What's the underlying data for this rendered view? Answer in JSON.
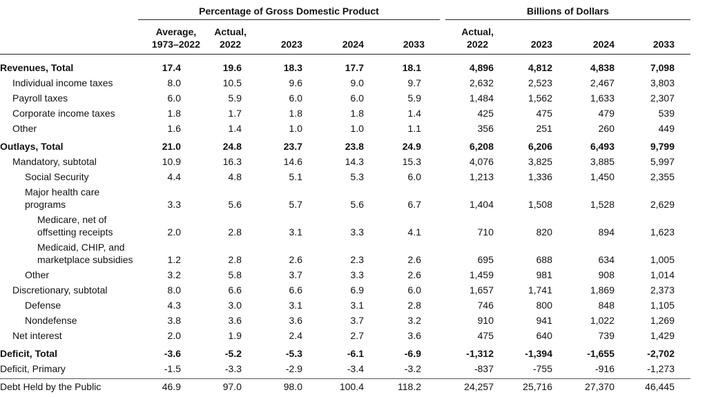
{
  "table": {
    "groups": [
      "Percentage of Gross Domestic Product",
      "Billions of Dollars"
    ],
    "columns": [
      "Average,\n1973–2022",
      "Actual,\n2022",
      "2023",
      "2024",
      "2033",
      "Actual,\n2022",
      "2023",
      "2024",
      "2033"
    ],
    "rows": [
      {
        "label": "Revenues, Total",
        "values": [
          "17.4",
          "19.6",
          "18.3",
          "17.7",
          "18.1",
          "4,896",
          "4,812",
          "4,838",
          "7,098"
        ]
      },
      {
        "label": "Individual income taxes",
        "values": [
          "8.0",
          "10.5",
          "9.6",
          "9.0",
          "9.7",
          "2,632",
          "2,523",
          "2,467",
          "3,803"
        ]
      },
      {
        "label": "Payroll taxes",
        "values": [
          "6.0",
          "5.9",
          "6.0",
          "6.0",
          "5.9",
          "1,484",
          "1,562",
          "1,633",
          "2,307"
        ]
      },
      {
        "label": "Corporate income taxes",
        "values": [
          "1.8",
          "1.7",
          "1.8",
          "1.8",
          "1.4",
          "425",
          "475",
          "479",
          "539"
        ]
      },
      {
        "label": "Other",
        "values": [
          "1.6",
          "1.4",
          "1.0",
          "1.0",
          "1.1",
          "356",
          "251",
          "260",
          "449"
        ]
      },
      {
        "label": "Outlays, Total",
        "values": [
          "21.0",
          "24.8",
          "23.7",
          "23.8",
          "24.9",
          "6,208",
          "6,206",
          "6,493",
          "9,799"
        ]
      },
      {
        "label": "Mandatory, subtotal",
        "values": [
          "10.9",
          "16.3",
          "14.6",
          "14.3",
          "15.3",
          "4,076",
          "3,825",
          "3,885",
          "5,997"
        ]
      },
      {
        "label": "Social Security",
        "values": [
          "4.4",
          "4.8",
          "5.1",
          "5.3",
          "6.0",
          "1,213",
          "1,336",
          "1,450",
          "2,355"
        ]
      },
      {
        "label": "Major health care\nprograms",
        "values": [
          "3.3",
          "5.6",
          "5.7",
          "5.6",
          "6.7",
          "1,404",
          "1,508",
          "1,528",
          "2,629"
        ]
      },
      {
        "label": "Medicare, net of\noffsetting receipts",
        "values": [
          "2.0",
          "2.8",
          "3.1",
          "3.3",
          "4.1",
          "710",
          "820",
          "894",
          "1,623"
        ]
      },
      {
        "label": "Medicaid, CHIP, and\nmarketplace subsidies",
        "values": [
          "1.2",
          "2.8",
          "2.6",
          "2.3",
          "2.6",
          "695",
          "688",
          "634",
          "1,005"
        ]
      },
      {
        "label": "Other",
        "values": [
          "3.2",
          "5.8",
          "3.7",
          "3.3",
          "2.6",
          "1,459",
          "981",
          "908",
          "1,014"
        ]
      },
      {
        "label": "Discretionary, subtotal",
        "values": [
          "8.0",
          "6.6",
          "6.6",
          "6.9",
          "6.0",
          "1,657",
          "1,741",
          "1,869",
          "2,373"
        ]
      },
      {
        "label": "Defense",
        "values": [
          "4.3",
          "3.0",
          "3.1",
          "3.1",
          "2.8",
          "746",
          "800",
          "848",
          "1,105"
        ]
      },
      {
        "label": "Nondefense",
        "values": [
          "3.8",
          "3.6",
          "3.6",
          "3.7",
          "3.2",
          "910",
          "941",
          "1,022",
          "1,269"
        ]
      },
      {
        "label": "Net interest",
        "values": [
          "2.0",
          "1.9",
          "2.4",
          "2.7",
          "3.6",
          "475",
          "640",
          "739",
          "1,429"
        ]
      },
      {
        "label": "Deficit, Total",
        "values": [
          "-3.6",
          "-5.2",
          "-5.3",
          "-6.1",
          "-6.9",
          "-1,312",
          "-1,394",
          "-1,655",
          "-2,702"
        ]
      },
      {
        "label": "Deficit, Primary",
        "values": [
          "-1.5",
          "-3.3",
          "-2.9",
          "-3.4",
          "-3.2",
          "-837",
          "-755",
          "-916",
          "-1,273"
        ]
      },
      {
        "label": "Debt Held by the Public",
        "values": [
          "46.9",
          "97.0",
          "98.0",
          "100.4",
          "118.2",
          "24,257",
          "25,716",
          "27,370",
          "46,445"
        ]
      }
    ]
  }
}
